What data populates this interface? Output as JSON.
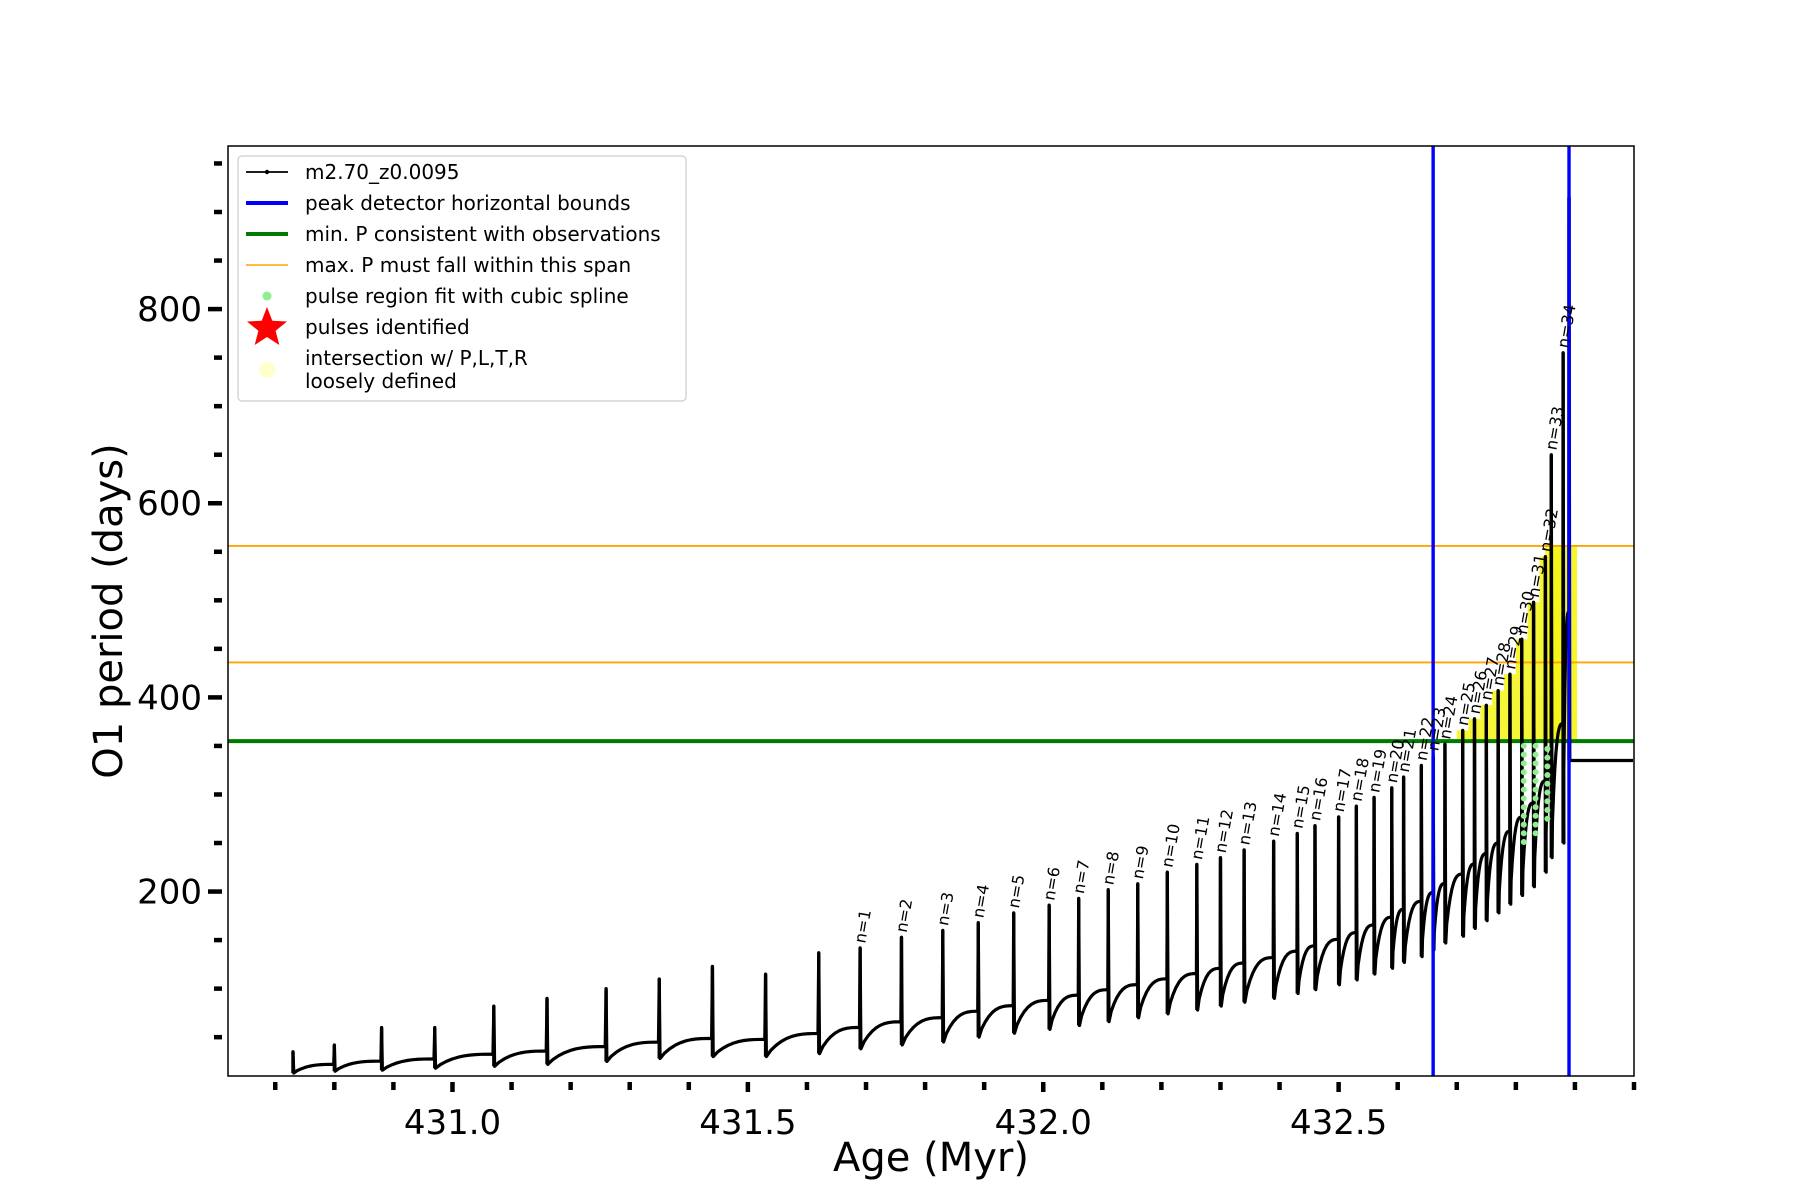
{
  "chart_data": {
    "type": "line",
    "xlabel": "Age (Myr)",
    "ylabel": "O1 period (days)",
    "xlim": [
      430.62,
      433.0
    ],
    "ylim": [
      10,
      968
    ],
    "x_ticks_major": [
      431.0,
      431.5,
      432.0,
      432.5
    ],
    "x_tick_labels": [
      "431.0",
      "431.5",
      "432.0",
      "432.5"
    ],
    "y_ticks_major": [
      200,
      400,
      600,
      800
    ],
    "y_tick_labels": [
      "200",
      "400",
      "600",
      "800"
    ],
    "legend_position": "upper-left",
    "legend": [
      {
        "key": "series",
        "label": "m2.70_z0.0095",
        "marker": "line-dot",
        "color": "#000000"
      },
      {
        "key": "bounds",
        "label": "peak detector horizontal bounds",
        "marker": "line",
        "color": "#0000ff"
      },
      {
        "key": "minp",
        "label": "min. P consistent with observations",
        "marker": "line",
        "color": "#007a00"
      },
      {
        "key": "maxp",
        "label": "max. P must fall within this span",
        "marker": "thin-line",
        "color": "#ffa500"
      },
      {
        "key": "spline",
        "label": "pulse region fit with cubic spline",
        "marker": "dot",
        "color": "#90ee90"
      },
      {
        "key": "pulses",
        "label": "pulses identified",
        "marker": "star",
        "color": "#ff0000"
      },
      {
        "key": "intersect",
        "label": [
          "intersection w/ P,L,T,R",
          "loosely defined"
        ],
        "marker": "big-dot",
        "color": "#ffffcc"
      }
    ],
    "vertical_bounds": [
      432.66,
      432.89
    ],
    "min_period": 355,
    "max_period_span": [
      436,
      556
    ],
    "colors": {
      "series": "#000000",
      "bounds": "#0000ff",
      "minp": "#007a00",
      "maxp": "#ffa500",
      "spline": "#90ee90",
      "highlight": "#f5f516"
    },
    "pre_pulses": [
      {
        "x": 430.73,
        "peak": 35,
        "min": 13
      },
      {
        "x": 430.8,
        "peak": 42,
        "min": 15
      },
      {
        "x": 430.88,
        "peak": 60,
        "min": 16
      },
      {
        "x": 430.97,
        "peak": 60,
        "min": 18
      },
      {
        "x": 431.07,
        "peak": 82,
        "min": 20
      },
      {
        "x": 431.16,
        "peak": 90,
        "min": 22
      },
      {
        "x": 431.26,
        "peak": 100,
        "min": 25
      },
      {
        "x": 431.35,
        "peak": 110,
        "min": 28
      },
      {
        "x": 431.44,
        "peak": 123,
        "min": 30
      },
      {
        "x": 431.53,
        "peak": 115,
        "min": 30
      },
      {
        "x": 431.62,
        "peak": 137,
        "min": 33
      }
    ],
    "pulses": [
      {
        "n": 1,
        "x": 431.69,
        "peak": 142,
        "min": 38
      },
      {
        "n": 2,
        "x": 431.76,
        "peak": 153,
        "min": 42
      },
      {
        "n": 3,
        "x": 431.83,
        "peak": 160,
        "min": 45
      },
      {
        "n": 4,
        "x": 431.89,
        "peak": 168,
        "min": 50
      },
      {
        "n": 5,
        "x": 431.95,
        "peak": 178,
        "min": 54
      },
      {
        "n": 6,
        "x": 432.01,
        "peak": 186,
        "min": 58
      },
      {
        "n": 7,
        "x": 432.06,
        "peak": 193,
        "min": 62
      },
      {
        "n": 8,
        "x": 432.11,
        "peak": 202,
        "min": 66
      },
      {
        "n": 9,
        "x": 432.16,
        "peak": 208,
        "min": 70
      },
      {
        "n": 10,
        "x": 432.21,
        "peak": 220,
        "min": 74
      },
      {
        "n": 11,
        "x": 432.26,
        "peak": 228,
        "min": 78
      },
      {
        "n": 12,
        "x": 432.3,
        "peak": 235,
        "min": 82
      },
      {
        "n": 13,
        "x": 432.34,
        "peak": 243,
        "min": 86
      },
      {
        "n": 14,
        "x": 432.39,
        "peak": 252,
        "min": 90
      },
      {
        "n": 15,
        "x": 432.43,
        "peak": 260,
        "min": 95
      },
      {
        "n": 16,
        "x": 432.46,
        "peak": 268,
        "min": 99
      },
      {
        "n": 17,
        "x": 432.5,
        "peak": 277,
        "min": 104
      },
      {
        "n": 18,
        "x": 432.53,
        "peak": 288,
        "min": 109
      },
      {
        "n": 19,
        "x": 432.56,
        "peak": 297,
        "min": 115
      },
      {
        "n": 20,
        "x": 432.59,
        "peak": 307,
        "min": 121
      },
      {
        "n": 21,
        "x": 432.61,
        "peak": 318,
        "min": 127
      },
      {
        "n": 22,
        "x": 432.64,
        "peak": 330,
        "min": 133
      },
      {
        "n": 23,
        "x": 432.66,
        "peak": 340,
        "min": 140
      },
      {
        "n": 24,
        "x": 432.68,
        "peak": 352,
        "min": 147
      },
      {
        "n": 25,
        "x": 432.71,
        "peak": 366,
        "min": 154
      },
      {
        "n": 26,
        "x": 432.73,
        "peak": 378,
        "min": 162
      },
      {
        "n": 27,
        "x": 432.75,
        "peak": 392,
        "min": 170
      },
      {
        "n": 28,
        "x": 432.77,
        "peak": 407,
        "min": 178
      },
      {
        "n": 29,
        "x": 432.79,
        "peak": 424,
        "min": 187
      },
      {
        "n": 30,
        "x": 432.81,
        "peak": 460,
        "min": 196
      },
      {
        "n": 31,
        "x": 432.83,
        "peak": 498,
        "min": 205
      },
      {
        "n": 32,
        "x": 432.85,
        "peak": 545,
        "min": 220
      },
      {
        "n": 33,
        "x": 432.86,
        "peak": 650,
        "min": 235
      },
      {
        "n": 34,
        "x": 432.88,
        "peak": 755,
        "min": 250
      }
    ],
    "final_spike": {
      "x": 432.89,
      "peak": 915,
      "min": 335
    }
  }
}
